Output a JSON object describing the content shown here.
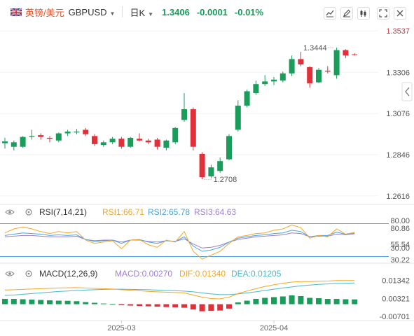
{
  "header": {
    "pair_name": "英镑/美元",
    "symbol": "GBPUSD",
    "interval": "日K",
    "price": "1.3406",
    "change": "-0.0001",
    "change_pct": "-0.01%"
  },
  "colors": {
    "up": "#1a9c5b",
    "down": "#e0313b",
    "rsi1": "#f5a623",
    "rsi2": "#4aa3df",
    "rsi3": "#9b7fd4",
    "dif": "#f5a623",
    "dea": "#4bb8c9"
  },
  "rsi_panel": {
    "label": "RSI(7,14,21)",
    "rsi1_label": "RSI1:66.71",
    "rsi2_label": "RSI2:65.78",
    "rsi3_label": "RSI3:64.63"
  },
  "macd_panel": {
    "label": "MACD(12,26,9)",
    "macd_label": "MACD:0.00270",
    "dif_label": "DIF:0.01340",
    "dea_label": "DEA:0.01205"
  },
  "chart_data": {
    "type": "candlestick",
    "price_axis_ticks": [
      "1.3537",
      "1.3306",
      "1.3076",
      "1.2846",
      "1.2616"
    ],
    "price_range": [
      1.2576,
      1.3577
    ],
    "max_label": "1.3444",
    "min_label": "1.2708",
    "date_labels": [
      {
        "label": "2025-03",
        "index": 13
      },
      {
        "label": "2025-04",
        "index": 30
      }
    ],
    "candles": [
      {
        "o": 1.291,
        "h": 1.294,
        "l": 1.288,
        "c": 1.292
      },
      {
        "o": 1.289,
        "h": 1.2925,
        "l": 1.287,
        "c": 1.2915
      },
      {
        "o": 1.289,
        "h": 1.295,
        "l": 1.2885,
        "c": 1.2945
      },
      {
        "o": 1.2945,
        "h": 1.2985,
        "l": 1.293,
        "c": 1.295
      },
      {
        "o": 1.2955,
        "h": 1.2965,
        "l": 1.293,
        "c": 1.2945
      },
      {
        "o": 1.294,
        "h": 1.295,
        "l": 1.2915,
        "c": 1.2935
      },
      {
        "o": 1.2925,
        "h": 1.297,
        "l": 1.2915,
        "c": 1.2965
      },
      {
        "o": 1.2965,
        "h": 1.2985,
        "l": 1.295,
        "c": 1.2975
      },
      {
        "o": 1.297,
        "h": 1.299,
        "l": 1.296,
        "c": 1.2975
      },
      {
        "o": 1.2985,
        "h": 1.2995,
        "l": 1.295,
        "c": 1.296
      },
      {
        "o": 1.295,
        "h": 1.296,
        "l": 1.2895,
        "c": 1.2905
      },
      {
        "o": 1.29,
        "h": 1.2925,
        "l": 1.289,
        "c": 1.2915
      },
      {
        "o": 1.2915,
        "h": 1.2945,
        "l": 1.2905,
        "c": 1.2935
      },
      {
        "o": 1.2935,
        "h": 1.2945,
        "l": 1.288,
        "c": 1.289
      },
      {
        "o": 1.289,
        "h": 1.2945,
        "l": 1.2885,
        "c": 1.294
      },
      {
        "o": 1.2935,
        "h": 1.2965,
        "l": 1.292,
        "c": 1.2925
      },
      {
        "o": 1.2925,
        "h": 1.2935,
        "l": 1.2905,
        "c": 1.2915
      },
      {
        "o": 1.293,
        "h": 1.294,
        "l": 1.2875,
        "c": 1.289
      },
      {
        "o": 1.2885,
        "h": 1.293,
        "l": 1.287,
        "c": 1.2925
      },
      {
        "o": 1.2915,
        "h": 1.3,
        "l": 1.2905,
        "c": 1.2995
      },
      {
        "o": 1.304,
        "h": 1.319,
        "l": 1.303,
        "c": 1.31
      },
      {
        "o": 1.31,
        "h": 1.311,
        "l": 1.287,
        "c": 1.289
      },
      {
        "o": 1.285,
        "h": 1.286,
        "l": 1.2708,
        "c": 1.272
      },
      {
        "o": 1.2725,
        "h": 1.279,
        "l": 1.2715,
        "c": 1.2775
      },
      {
        "o": 1.2755,
        "h": 1.283,
        "l": 1.2745,
        "c": 1.281
      },
      {
        "o": 1.282,
        "h": 1.296,
        "l": 1.2815,
        "c": 1.295
      },
      {
        "o": 1.2985,
        "h": 1.315,
        "l": 1.2975,
        "c": 1.312
      },
      {
        "o": 1.312,
        "h": 1.321,
        "l": 1.311,
        "c": 1.32
      },
      {
        "o": 1.319,
        "h": 1.326,
        "l": 1.318,
        "c": 1.324
      },
      {
        "o": 1.324,
        "h": 1.329,
        "l": 1.323,
        "c": 1.3255
      },
      {
        "o": 1.3255,
        "h": 1.328,
        "l": 1.3235,
        "c": 1.3265
      },
      {
        "o": 1.326,
        "h": 1.331,
        "l": 1.325,
        "c": 1.33
      },
      {
        "o": 1.33,
        "h": 1.34,
        "l": 1.3285,
        "c": 1.338
      },
      {
        "o": 1.338,
        "h": 1.342,
        "l": 1.334,
        "c": 1.335
      },
      {
        "o": 1.3335,
        "h": 1.334,
        "l": 1.322,
        "c": 1.3245
      },
      {
        "o": 1.325,
        "h": 1.333,
        "l": 1.3245,
        "c": 1.332
      },
      {
        "o": 1.3315,
        "h": 1.334,
        "l": 1.33,
        "c": 1.331
      },
      {
        "o": 1.329,
        "h": 1.3444,
        "l": 1.327,
        "c": 1.343
      },
      {
        "o": 1.343,
        "h": 1.3435,
        "l": 1.3385,
        "c": 1.34
      },
      {
        "o": 1.3407,
        "h": 1.3412,
        "l": 1.34,
        "c": 1.3406
      }
    ],
    "rsi_axis_ticks": [
      "80.00",
      "80.86",
      "55.54",
      "30.00",
      "30.22"
    ],
    "rsi_range": [
      22,
      88
    ],
    "rsi_ref_lines": [
      80,
      30
    ],
    "rsi1": [
      66,
      72,
      75,
      72,
      68,
      65,
      68,
      66,
      68,
      55,
      50,
      52,
      54,
      42,
      55,
      56,
      48,
      44,
      55,
      52,
      68,
      38,
      26,
      32,
      38,
      50,
      60,
      62,
      65,
      66,
      70,
      72,
      78,
      74,
      58,
      62,
      60,
      72,
      64,
      66.71
    ],
    "rsi2": [
      62,
      64,
      66,
      65,
      64,
      62,
      63,
      62,
      63,
      56,
      53,
      54,
      55,
      50,
      55,
      56,
      52,
      50,
      54,
      53,
      60,
      46,
      38,
      40,
      44,
      52,
      58,
      60,
      62,
      63,
      65,
      66,
      70,
      68,
      60,
      62,
      62,
      67,
      64,
      65.78
    ],
    "rsi3": [
      60,
      61,
      62,
      62,
      61,
      60,
      60,
      60,
      61,
      56,
      54,
      55,
      55,
      52,
      55,
      55,
      53,
      52,
      54,
      53,
      57,
      49,
      43,
      44,
      47,
      52,
      56,
      58,
      60,
      61,
      62,
      63,
      66,
      65,
      60,
      61,
      61,
      64,
      63,
      64.63
    ],
    "macd_axis_ticks": [
      "0.01342",
      "0.00321",
      "-0.00701"
    ],
    "macd_range": [
      -0.0085,
      0.0145
    ],
    "macd_hist": [
      0.003,
      0.003,
      0.0028,
      0.0026,
      0.0024,
      0.0022,
      0.002,
      0.0019,
      0.0017,
      0.0012,
      0.0008,
      0.0004,
      0.0001,
      -0.0006,
      -0.0008,
      -0.001,
      -0.0012,
      -0.0014,
      -0.0016,
      -0.0018,
      -0.002,
      -0.003,
      -0.004,
      -0.0038,
      -0.0036,
      -0.0025,
      0.001,
      0.002,
      0.003,
      0.0036,
      0.004,
      0.0044,
      0.005,
      0.0046,
      0.0036,
      0.0034,
      0.003,
      0.003,
      0.0028,
      0.0027
    ],
    "dif": [
      0.008,
      0.0082,
      0.0084,
      0.0086,
      0.0088,
      0.009,
      0.0092,
      0.0093,
      0.0094,
      0.0092,
      0.009,
      0.0088,
      0.0086,
      0.0082,
      0.0079,
      0.0076,
      0.0073,
      0.007,
      0.0068,
      0.0066,
      0.0064,
      0.0052,
      0.004,
      0.0032,
      0.003,
      0.004,
      0.006,
      0.0075,
      0.0088,
      0.01,
      0.011,
      0.0118,
      0.0125,
      0.0128,
      0.0128,
      0.013,
      0.0131,
      0.0134,
      0.0134,
      0.0134
    ],
    "dea": [
      0.005,
      0.0052,
      0.0056,
      0.006,
      0.0064,
      0.0068,
      0.0072,
      0.0075,
      0.0078,
      0.008,
      0.0082,
      0.0084,
      0.0085,
      0.0085,
      0.0084,
      0.0083,
      0.0082,
      0.008,
      0.0078,
      0.0076,
      0.0074,
      0.007,
      0.0064,
      0.0058,
      0.0054,
      0.0054,
      0.0058,
      0.0064,
      0.007,
      0.0078,
      0.0085,
      0.0092,
      0.0098,
      0.0104,
      0.0108,
      0.0112,
      0.0115,
      0.0118,
      0.0119,
      0.012
    ]
  }
}
